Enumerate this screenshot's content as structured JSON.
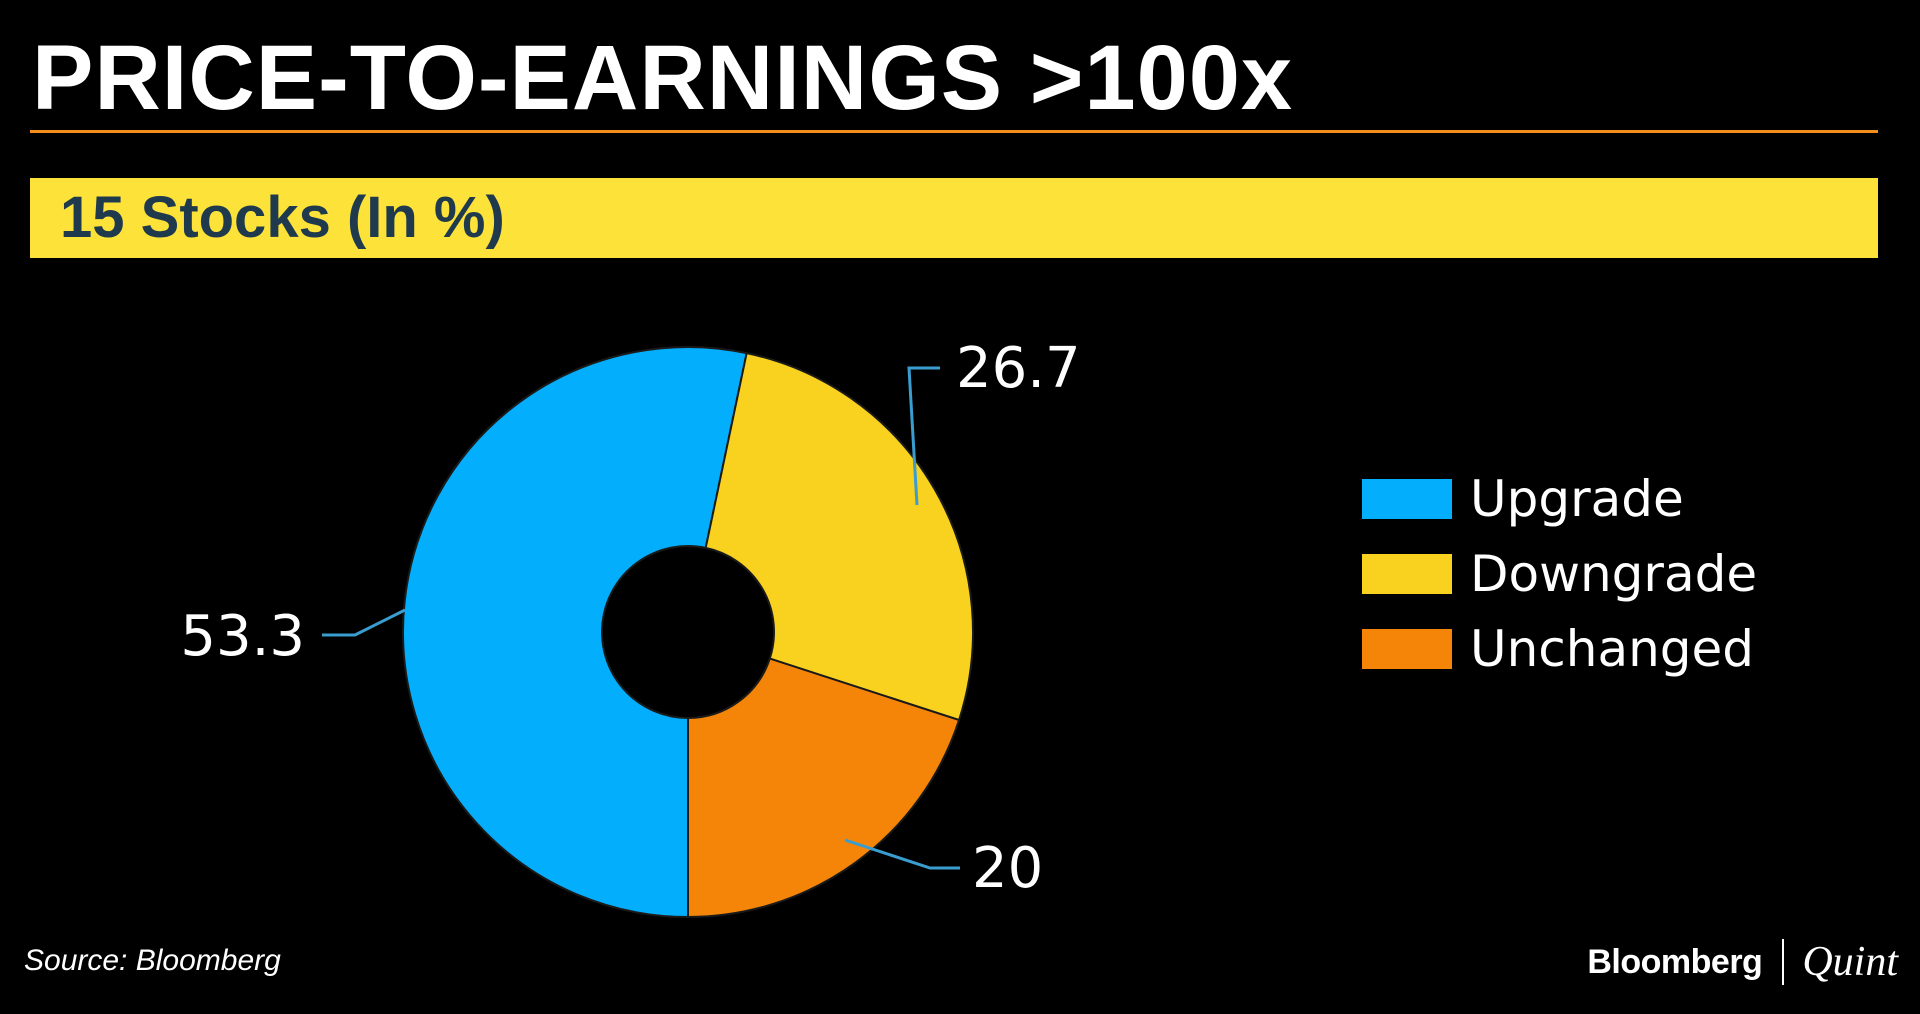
{
  "header": {
    "title": "PRICE-TO-EARNINGS >100x",
    "subtitle": "15 Stocks (In %)"
  },
  "chart_data": {
    "type": "pie",
    "variant": "donut",
    "title": "PRICE-TO-EARNINGS >100x",
    "subtitle": "15 Stocks (In %)",
    "start_angle_deg": 0,
    "direction": "clockwise-from-bottom",
    "slices": [
      {
        "label": "Upgrade",
        "value": 53.3,
        "display": "53.3",
        "color": "#03aefd"
      },
      {
        "label": "Downgrade",
        "value": 26.7,
        "display": "26.7",
        "color": "#f9d21f"
      },
      {
        "label": "Unchanged",
        "value": 20,
        "display": "20",
        "color": "#f58508"
      }
    ],
    "legend_position": "right",
    "data_labels": "outside with leader lines"
  },
  "footer": {
    "source": "Source: Bloomberg",
    "brand_left": "Bloomberg",
    "brand_right": "Quint"
  },
  "colors": {
    "background": "#000000",
    "rule": "#f3901d",
    "subtitle_bar": "#fde23a",
    "subtitle_text": "#1f3a4d",
    "leader_line": "#3a9dd0"
  }
}
